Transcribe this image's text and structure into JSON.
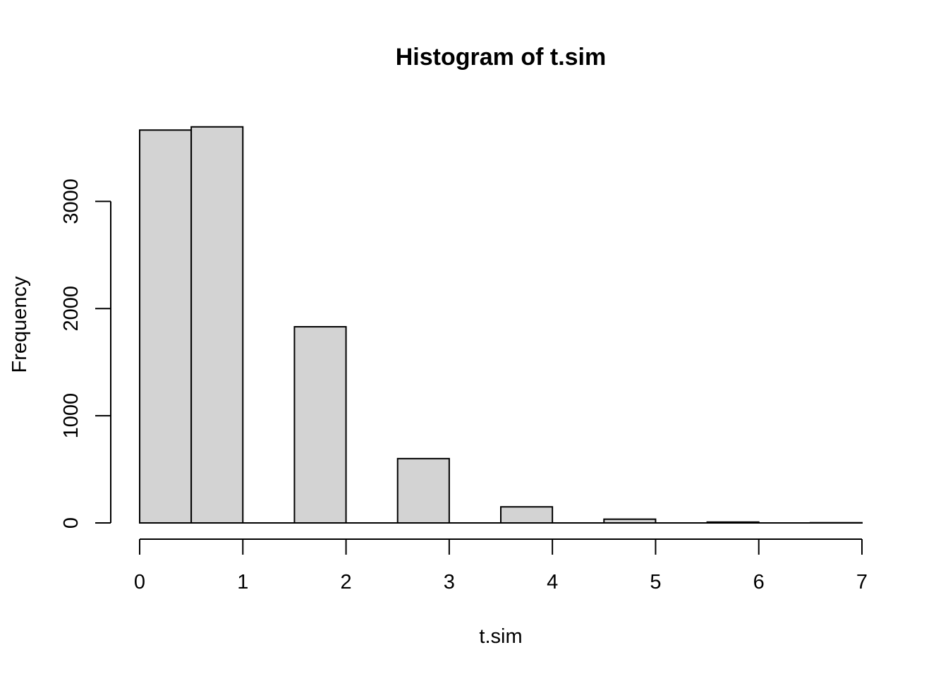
{
  "chart_data": {
    "type": "bar",
    "title": "Histogram of t.sim",
    "xlabel": "t.sim",
    "ylabel": "Frequency",
    "bin_edges": [
      0,
      0.5,
      1,
      1.5,
      2,
      2.5,
      3,
      3.5,
      4,
      4.5,
      5,
      5.5,
      6,
      6.5,
      7
    ],
    "values": [
      3665,
      3695,
      0,
      1830,
      0,
      600,
      0,
      150,
      0,
      35,
      0,
      8,
      0,
      2
    ],
    "xlim": [
      0,
      7
    ],
    "ylim": [
      0,
      3700
    ],
    "x_ticks": [
      0,
      1,
      2,
      3,
      4,
      5,
      6,
      7
    ],
    "y_ticks": [
      0,
      1000,
      2000,
      3000
    ],
    "x_tick_labels": [
      "0",
      "1",
      "2",
      "3",
      "4",
      "5",
      "6",
      "7"
    ],
    "y_tick_labels": [
      "0",
      "1000",
      "2000",
      "3000"
    ],
    "bar_fill": "#d3d3d3",
    "bar_stroke": "#000000",
    "grid": false,
    "legend": "none"
  }
}
